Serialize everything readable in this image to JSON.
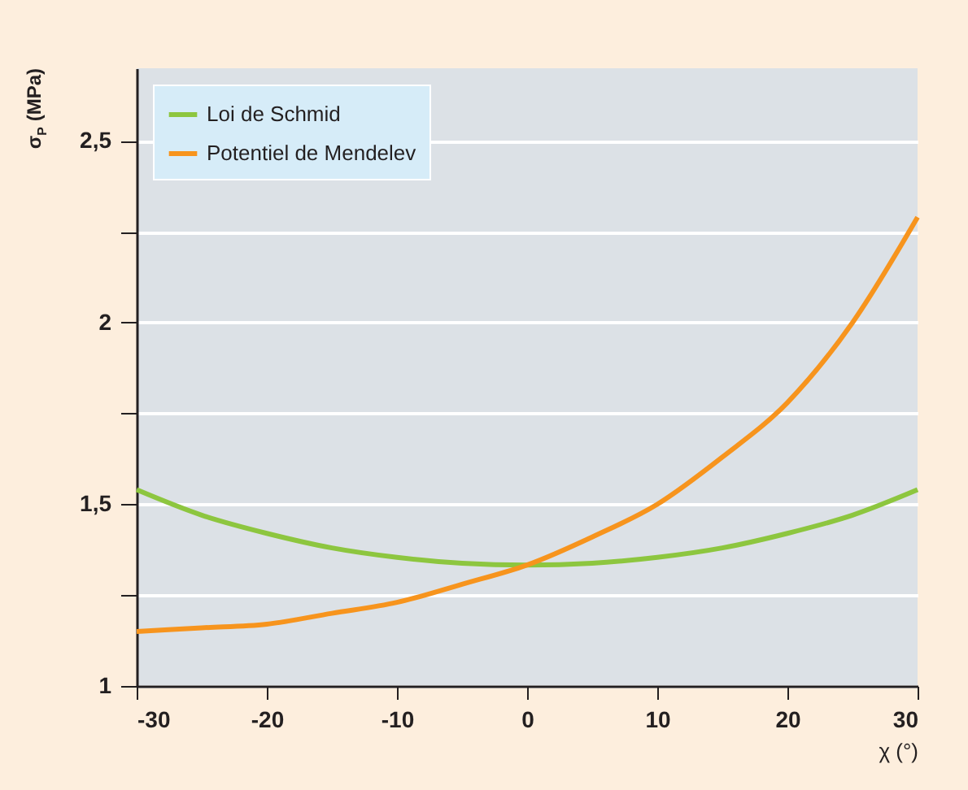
{
  "chart_data": {
    "type": "line",
    "xlabel": "χ (°)",
    "ylabel": "σ$_{P}$ (MPa)",
    "x": [
      -30,
      -25,
      -20,
      -15,
      -10,
      -5,
      0,
      5,
      10,
      15,
      20,
      25,
      30
    ],
    "series": [
      {
        "name": "Loi de Schmid",
        "color": "#8dc63f",
        "values": [
          1.54,
          1.47,
          1.42,
          1.38,
          1.354,
          1.338,
          1.333,
          1.338,
          1.354,
          1.38,
          1.42,
          1.47,
          1.54
        ]
      },
      {
        "name": "Potentiel de Mendelev",
        "color": "#f7941d",
        "values": [
          1.15,
          1.16,
          1.17,
          1.2,
          1.23,
          1.28,
          1.333,
          1.41,
          1.5,
          1.63,
          1.78,
          2.0,
          2.29
        ]
      }
    ],
    "xlim": [
      -30,
      30
    ],
    "xticks": [
      -30,
      -20,
      -10,
      0,
      10,
      20,
      30
    ],
    "ylim": [
      1,
      2.7
    ],
    "yticks": [
      1,
      {
        "value": 1.25,
        "label": null
      },
      {
        "value": 1.5,
        "label": "1,5"
      },
      {
        "value": 1.75,
        "label": null
      },
      2,
      {
        "value": 2.25,
        "label": null
      },
      {
        "value": 2.5,
        "label": "2,5"
      }
    ],
    "grid": "y",
    "legend": "top left",
    "marker": "none",
    "line_style": "solid"
  }
}
